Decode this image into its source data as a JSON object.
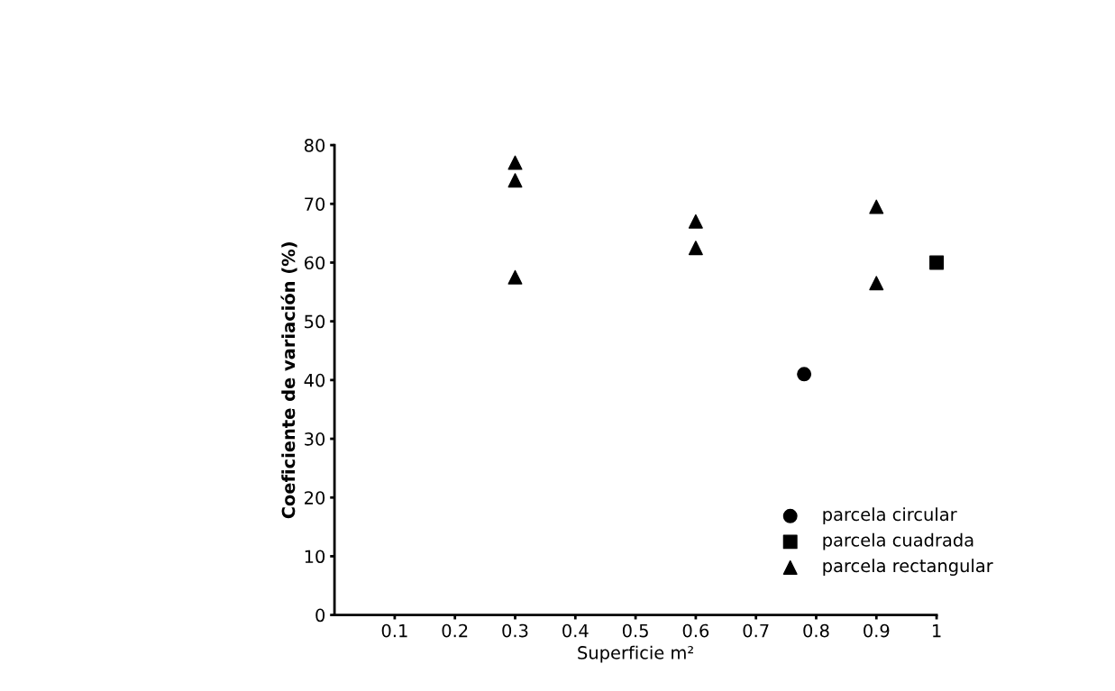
{
  "chart_data": {
    "type": "scatter",
    "xlabel": "Superficie m²",
    "ylabel": "Coeficiente de variación (%)",
    "xlim": [
      0,
      1.0
    ],
    "ylim": [
      0,
      80
    ],
    "xticks": [
      {
        "value": 0.1,
        "label": "0.1"
      },
      {
        "value": 0.2,
        "label": "0.2"
      },
      {
        "value": 0.3,
        "label": "0.3"
      },
      {
        "value": 0.4,
        "label": "0.4"
      },
      {
        "value": 0.5,
        "label": "0.5"
      },
      {
        "value": 0.6,
        "label": "0.6"
      },
      {
        "value": 0.7,
        "label": "0.7"
      },
      {
        "value": 0.8,
        "label": "0.8"
      },
      {
        "value": 0.9,
        "label": "0.9"
      },
      {
        "value": 1,
        "label": "1"
      }
    ],
    "yticks": [
      0,
      10,
      20,
      30,
      40,
      50,
      60,
      70,
      80
    ],
    "grid": false,
    "legend": "bottom right",
    "series": [
      {
        "name": "parcela circular",
        "color": "#000000",
        "marker": "circle",
        "x": [
          0.78
        ],
        "values": [
          41
        ]
      },
      {
        "name": "parcela cuadrada",
        "color": "#000000",
        "marker": "square",
        "x": [
          1.0
        ],
        "values": [
          60
        ]
      },
      {
        "name": "parcela rectangular",
        "color": "#000000",
        "marker": "triangle",
        "x": [
          0.3,
          0.3,
          0.3,
          0.6,
          0.6,
          0.9,
          0.9
        ],
        "values": [
          77,
          74,
          57.5,
          67,
          62.5,
          69.5,
          56.5
        ]
      }
    ]
  }
}
